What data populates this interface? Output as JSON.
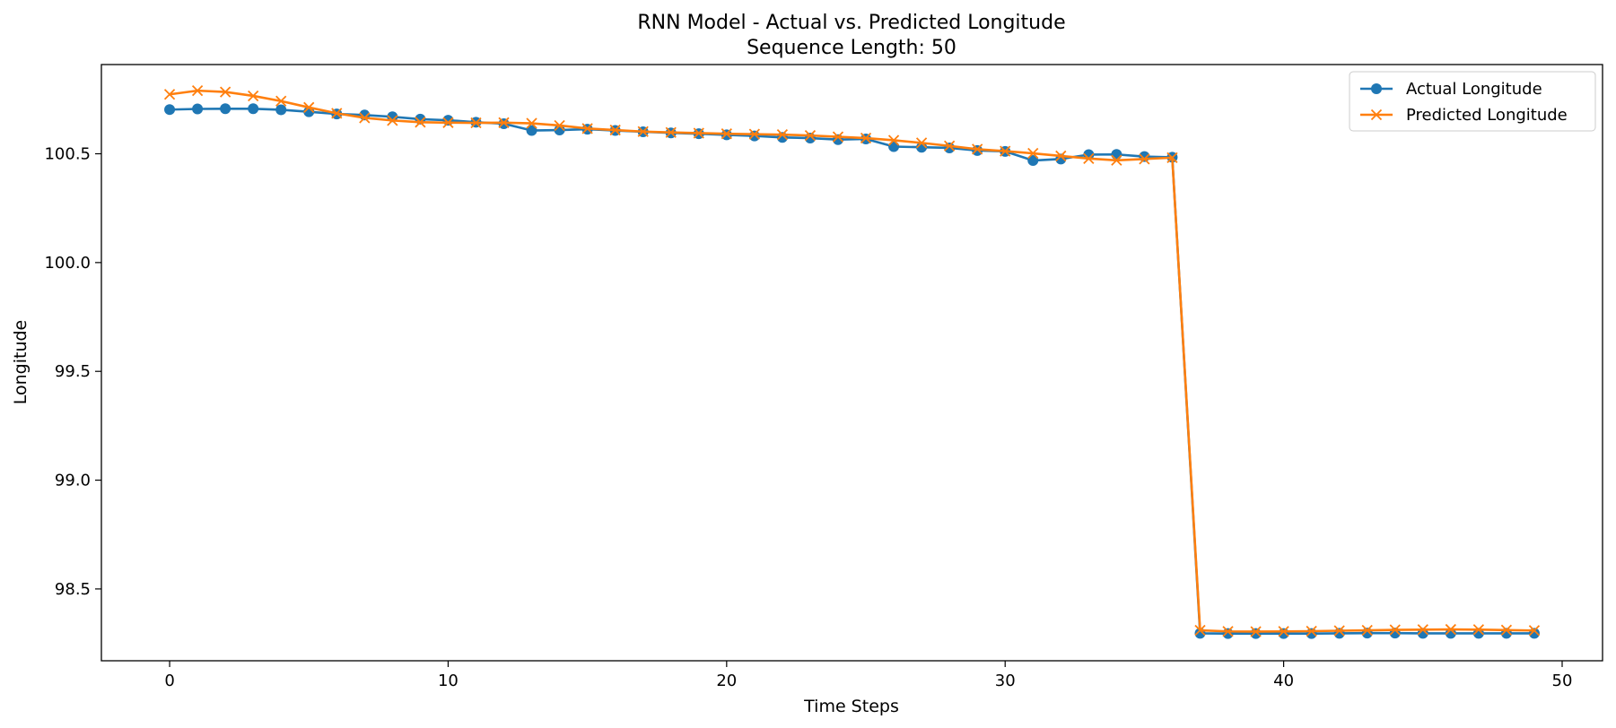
{
  "chart_data": {
    "type": "line",
    "title": "RNN Model - Actual vs. Predicted Longitude",
    "subtitle": "Sequence Length: 50",
    "xlabel": "Time Steps",
    "ylabel": "Longitude",
    "xlim": [
      -2.45,
      51.45
    ],
    "ylim": [
      98.17,
      100.91
    ],
    "xticks": [
      0,
      10,
      20,
      30,
      40,
      50
    ],
    "yticks": [
      98.5,
      99.0,
      99.5,
      100.0,
      100.5
    ],
    "ytick_labels": [
      "98.5",
      "99.0",
      "99.5",
      "100.0",
      "100.5"
    ],
    "grid": false,
    "legend_position": "top-right",
    "x": [
      0,
      1,
      2,
      3,
      4,
      5,
      6,
      7,
      8,
      9,
      10,
      11,
      12,
      13,
      14,
      15,
      16,
      17,
      18,
      19,
      20,
      21,
      22,
      23,
      24,
      25,
      26,
      27,
      28,
      29,
      30,
      31,
      32,
      33,
      34,
      35,
      36,
      37,
      38,
      39,
      40,
      41,
      42,
      43,
      44,
      45,
      46,
      47,
      48,
      49
    ],
    "series": [
      {
        "name": "Actual Longitude",
        "color": "#1f77b4",
        "marker": "circle",
        "values": [
          100.703,
          100.706,
          100.707,
          100.707,
          100.702,
          100.693,
          100.683,
          100.678,
          100.67,
          100.659,
          100.654,
          100.645,
          100.638,
          100.607,
          100.609,
          100.613,
          100.607,
          100.601,
          100.596,
          100.592,
          100.587,
          100.582,
          100.575,
          100.572,
          100.565,
          100.568,
          100.533,
          100.53,
          100.527,
          100.515,
          100.511,
          100.469,
          100.476,
          100.496,
          100.497,
          100.487,
          100.484,
          98.296,
          98.295,
          98.295,
          98.295,
          98.295,
          98.296,
          98.297,
          98.297,
          98.296,
          98.296,
          98.296,
          98.296,
          98.296
        ]
      },
      {
        "name": "Predicted Longitude",
        "color": "#ff7f0e",
        "marker": "x",
        "values": [
          100.773,
          100.79,
          100.784,
          100.766,
          100.742,
          100.713,
          100.686,
          100.665,
          100.653,
          100.645,
          100.643,
          100.642,
          100.643,
          100.64,
          100.63,
          100.616,
          100.609,
          100.602,
          100.598,
          100.595,
          100.592,
          100.59,
          100.588,
          100.584,
          100.578,
          100.572,
          100.562,
          100.55,
          100.536,
          100.521,
          100.512,
          100.502,
          100.49,
          100.478,
          100.47,
          100.476,
          100.482,
          98.31,
          98.305,
          98.304,
          98.305,
          98.306,
          98.308,
          98.31,
          98.312,
          98.313,
          98.314,
          98.313,
          98.311,
          98.309
        ]
      }
    ]
  }
}
